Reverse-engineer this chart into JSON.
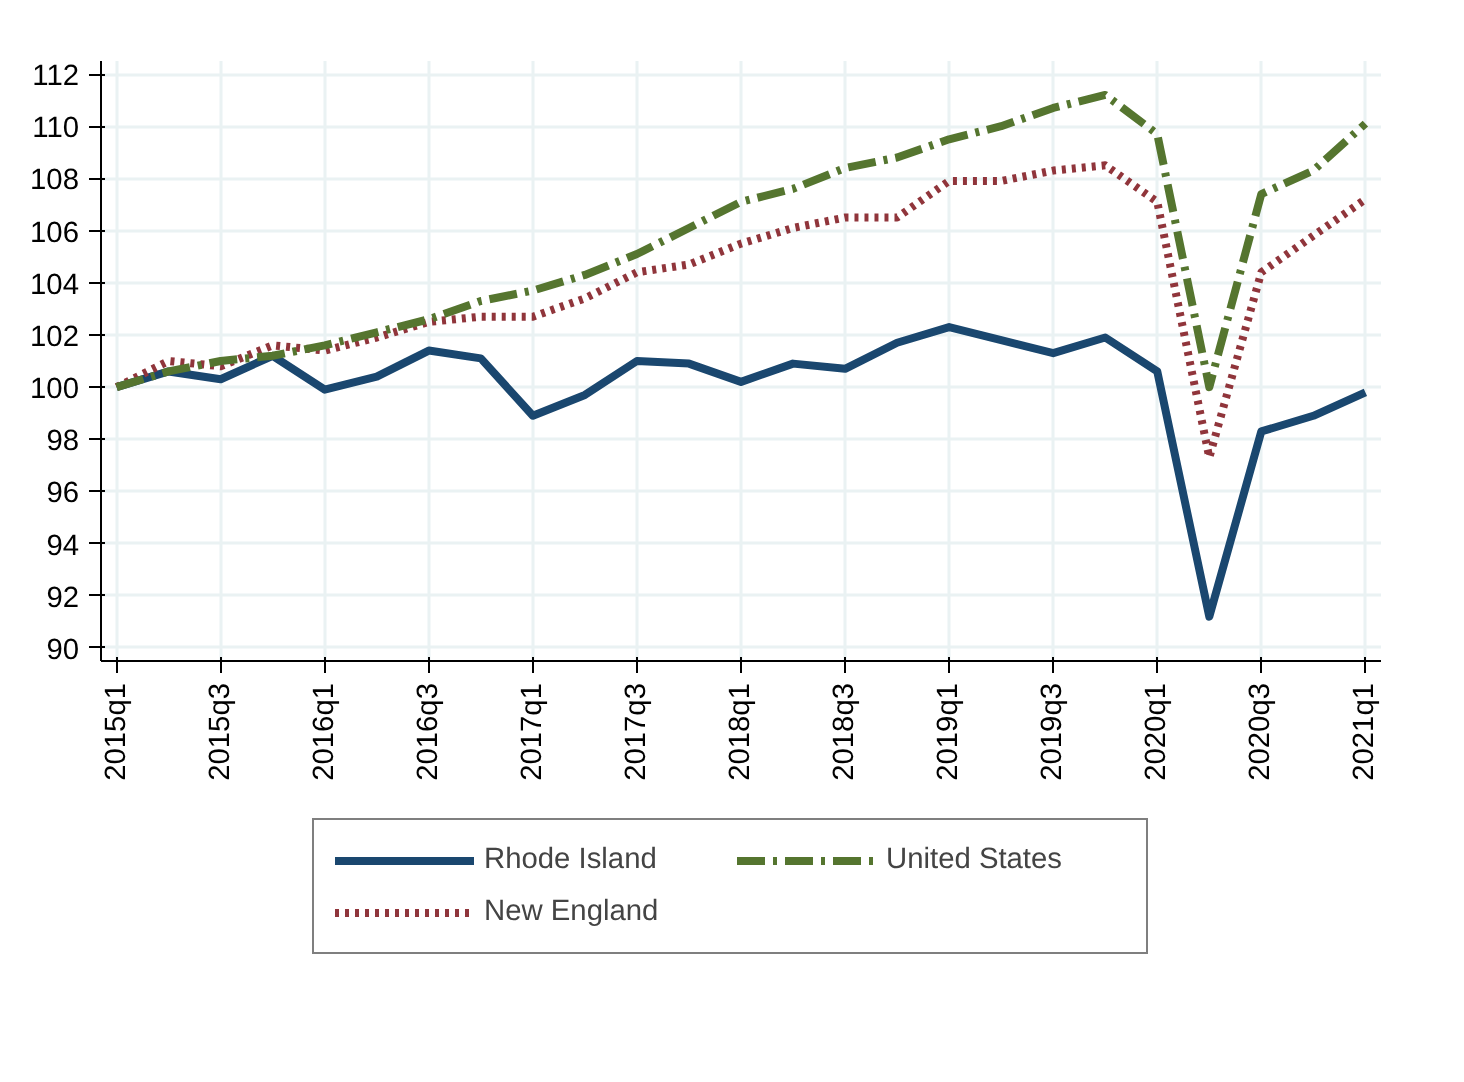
{
  "chart_data": {
    "type": "line",
    "categories": [
      "2015q1",
      null,
      "2015q3",
      null,
      "2016q1",
      null,
      "2016q3",
      null,
      "2017q1",
      null,
      "2017q3",
      null,
      "2018q1",
      null,
      "2018q3",
      null,
      "2019q1",
      null,
      "2019q3",
      null,
      "2020q1",
      null,
      "2020q3",
      null,
      "2021q1"
    ],
    "series": [
      {
        "name": "Rhode Island",
        "color": "#1a476f",
        "line_style": "solid",
        "values": [
          100,
          100.6,
          100.3,
          101.2,
          99.9,
          100.4,
          101.4,
          101.1,
          98.9,
          99.7,
          101.0,
          100.9,
          100.2,
          100.9,
          100.7,
          101.7,
          102.3,
          101.8,
          101.3,
          101.9,
          100.6,
          91.2,
          98.3,
          98.9,
          99.8
        ]
      },
      {
        "name": "New England",
        "color": "#90353b",
        "line_style": "dotted",
        "values": [
          100,
          101.0,
          100.8,
          101.6,
          101.4,
          101.9,
          102.5,
          102.7,
          102.7,
          103.4,
          104.4,
          104.7,
          105.5,
          106.1,
          106.5,
          106.5,
          107.9,
          107.9,
          108.3,
          108.5,
          107.1,
          97.3,
          104.4,
          105.8,
          107.2
        ]
      },
      {
        "name": "United States",
        "color": "#55752f",
        "line_style": "dashed",
        "values": [
          100,
          100.6,
          101.0,
          101.2,
          101.6,
          102.1,
          102.6,
          103.3,
          103.7,
          104.3,
          105.1,
          106.1,
          107.1,
          107.6,
          108.4,
          108.8,
          109.5,
          110.0,
          110.7,
          111.2,
          109.7,
          100.0,
          107.4,
          108.3,
          110.1
        ]
      }
    ],
    "ylim": [
      89.5,
      112.5
    ],
    "yticks": [
      90,
      92,
      94,
      96,
      98,
      100,
      102,
      104,
      106,
      108,
      110,
      112
    ],
    "grid": true,
    "legend": "bottom"
  }
}
